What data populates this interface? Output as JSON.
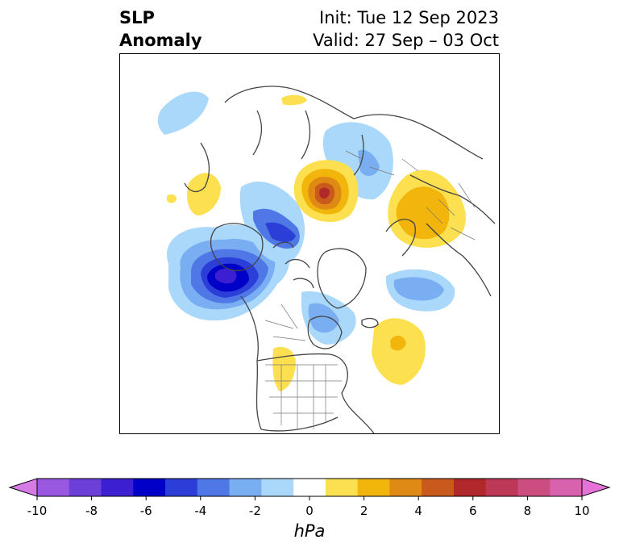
{
  "header": {
    "title_line1": "SLP",
    "title_line2": "Anomaly",
    "init_text": "Init: Tue 12 Sep 2023",
    "valid_text": "Valid: 27 Sep – 03 Oct"
  },
  "colorbar": {
    "unit": "hPa",
    "tick_labels": [
      "-10",
      "-8",
      "-6",
      "-4",
      "-2",
      "0",
      "2",
      "4",
      "6",
      "8",
      "10"
    ],
    "colors": [
      "#d67ae6",
      "#9a57e0",
      "#6b3fd8",
      "#3c1fd0",
      "#0000c8",
      "#2b3fd8",
      "#4f78e6",
      "#7aaef2",
      "#aad8fa",
      "#ffffff",
      "#fde04f",
      "#f1b50b",
      "#de8a14",
      "#c85a1c",
      "#b0282a",
      "#bd3856",
      "#cc4e80",
      "#d862ae",
      "#e672d8"
    ]
  },
  "map": {
    "projection": "north-polar-stereographic",
    "region": "Northern Hemisphere (North America / Arctic)"
  }
}
